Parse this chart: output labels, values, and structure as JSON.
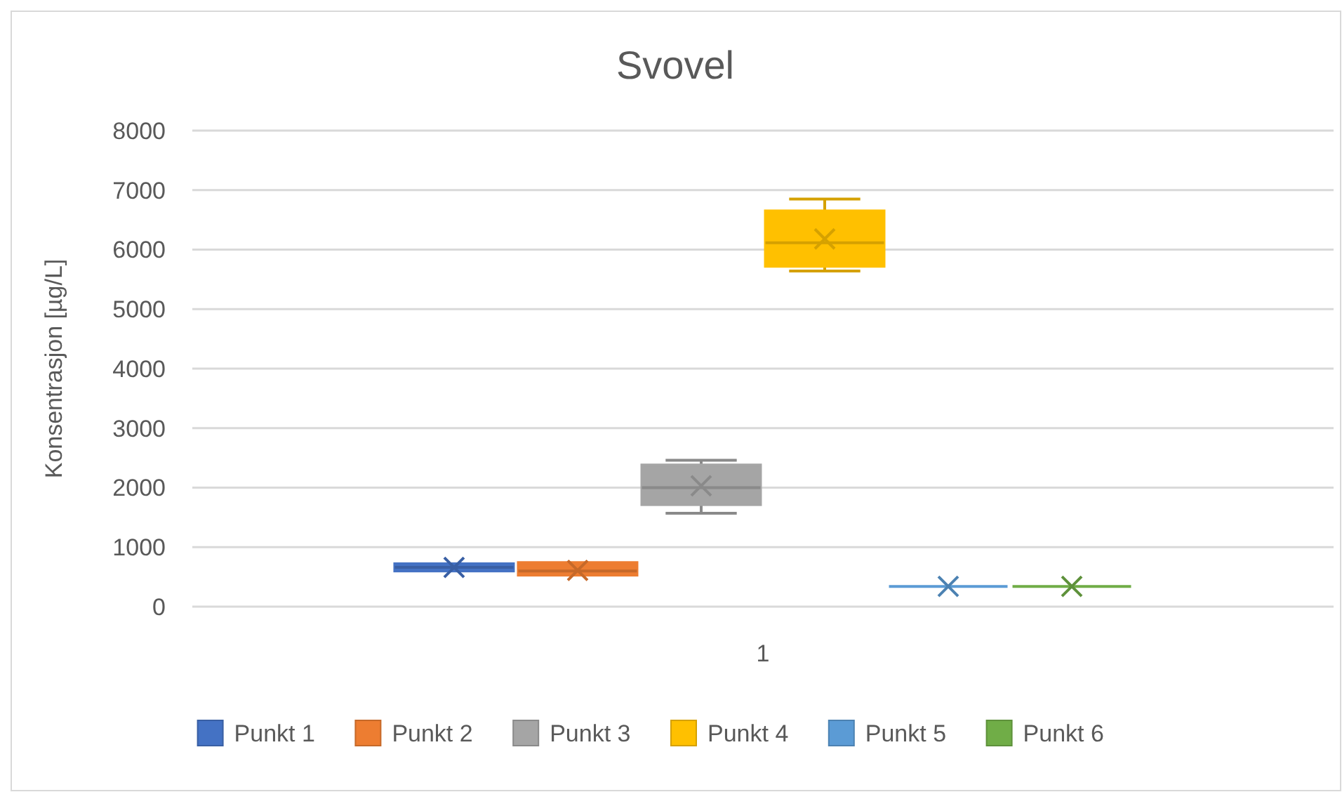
{
  "chart_data": {
    "type": "box",
    "title": "Svovel",
    "ylabel": "Konsentrasjon [µg/L]",
    "categories": [
      "1"
    ],
    "ylim": [
      0,
      8000
    ],
    "yticks": [
      0,
      1000,
      2000,
      3000,
      4000,
      5000,
      6000,
      7000,
      8000
    ],
    "grid": "y",
    "legend": "bottom",
    "marker": "cross",
    "series": [
      {
        "name": "Punkt 1",
        "color": "#4472c4",
        "boxes": [
          {
            "low": 600,
            "q1": 600,
            "median": 660,
            "q3": 720,
            "high": 720,
            "mean": 660
          }
        ]
      },
      {
        "name": "Punkt 2",
        "color": "#ed7d31",
        "boxes": [
          {
            "low": 530,
            "q1": 530,
            "median": 600,
            "q3": 740,
            "high": 740,
            "mean": 610
          }
        ]
      },
      {
        "name": "Punkt 3",
        "color": "#a5a5a5",
        "boxes": [
          {
            "low": 1570,
            "q1": 1715,
            "median": 2000,
            "q3": 2380,
            "high": 2460,
            "mean": 2030
          }
        ]
      },
      {
        "name": "Punkt 4",
        "color": "#ffc000",
        "boxes": [
          {
            "low": 5640,
            "q1": 5720,
            "median": 6115,
            "q3": 6650,
            "high": 6850,
            "mean": 6180
          }
        ]
      },
      {
        "name": "Punkt 5",
        "color": "#5b9bd5",
        "boxes": [
          {
            "low": 340,
            "q1": 340,
            "median": 340,
            "q3": 340,
            "high": 340,
            "mean": 340
          }
        ]
      },
      {
        "name": "Punkt 6",
        "color": "#70ad47",
        "boxes": [
          {
            "low": 340,
            "q1": 340,
            "median": 340,
            "q3": 340,
            "high": 340,
            "mean": 340
          }
        ]
      }
    ]
  }
}
